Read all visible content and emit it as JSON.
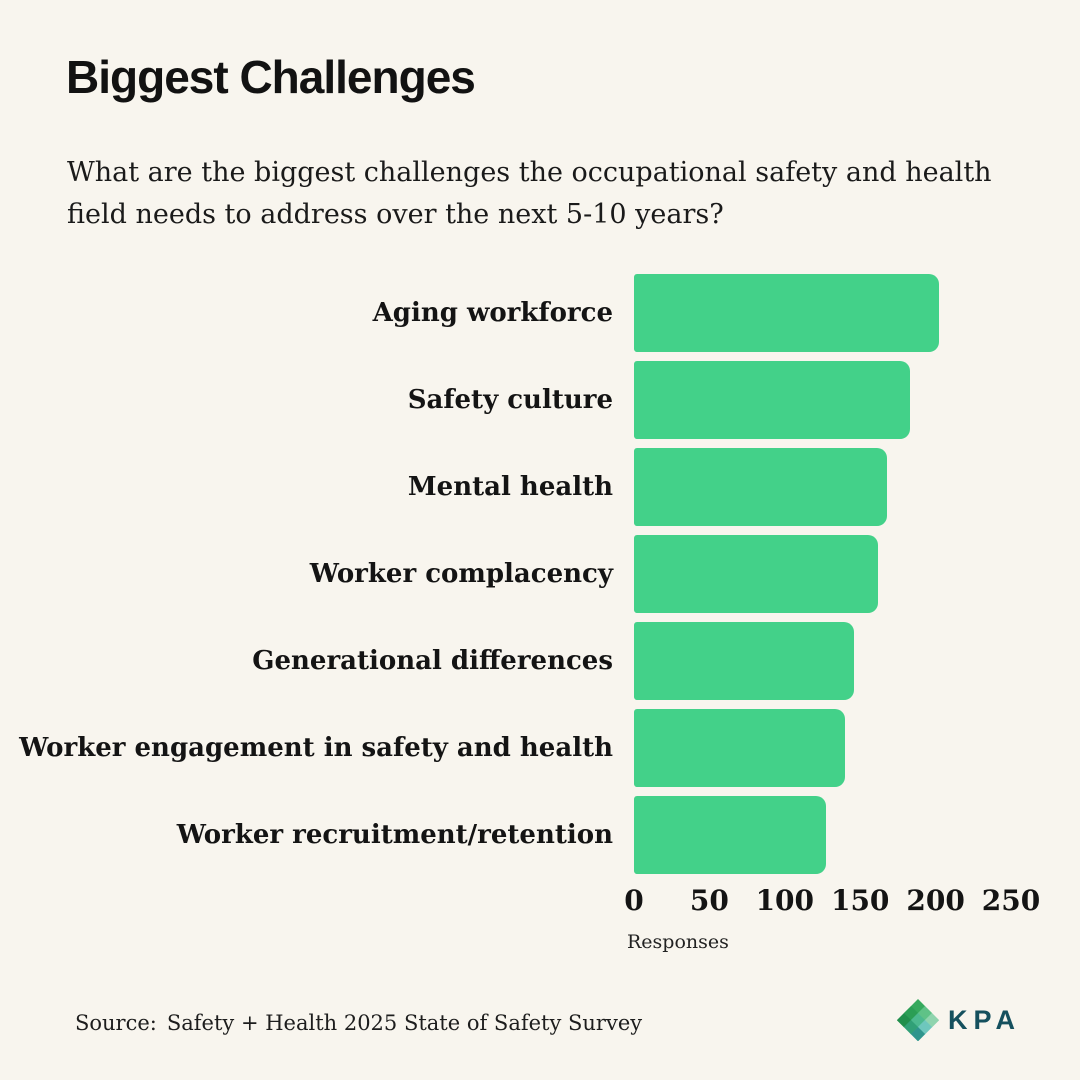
{
  "header": {
    "title": "Biggest Challenges",
    "subtitle_lines": [
      "What are the biggest challenges the occupational safety and health",
      "field needs to address over the next 5-10 years?"
    ]
  },
  "chart_data": {
    "type": "bar",
    "orientation": "horizontal",
    "title": "Biggest Challenges",
    "categories": [
      "Aging workforce",
      "Safety culture",
      "Mental health",
      "Worker complacency",
      "Generational differences",
      "Worker engagement in safety and health",
      "Worker recruitment/retention"
    ],
    "values": [
      202,
      183,
      168,
      162,
      146,
      140,
      127
    ],
    "xlabel": "Responses",
    "ylabel": "",
    "xlim": [
      0,
      250
    ],
    "xticks": [
      0,
      50,
      100,
      150,
      200,
      250
    ],
    "grid": false,
    "legend": false,
    "bar_color": "#43d189"
  },
  "footer": {
    "source_label": "Source:",
    "source_text": "Safety + Health 2025 State of Safety Survey",
    "logo_text": "KPA",
    "logo_text_color": "#15505e",
    "logo_diamond_colors": [
      "#36a95d",
      "#5fc287",
      "#8fd4ae",
      "#2b9e55",
      "#4cb98f",
      "#6ec7bd",
      "#218f4c",
      "#31a077",
      "#2f958d"
    ]
  },
  "colors": {
    "background": "#f8f5ee",
    "text": "#141414",
    "bar": "#43d189"
  }
}
